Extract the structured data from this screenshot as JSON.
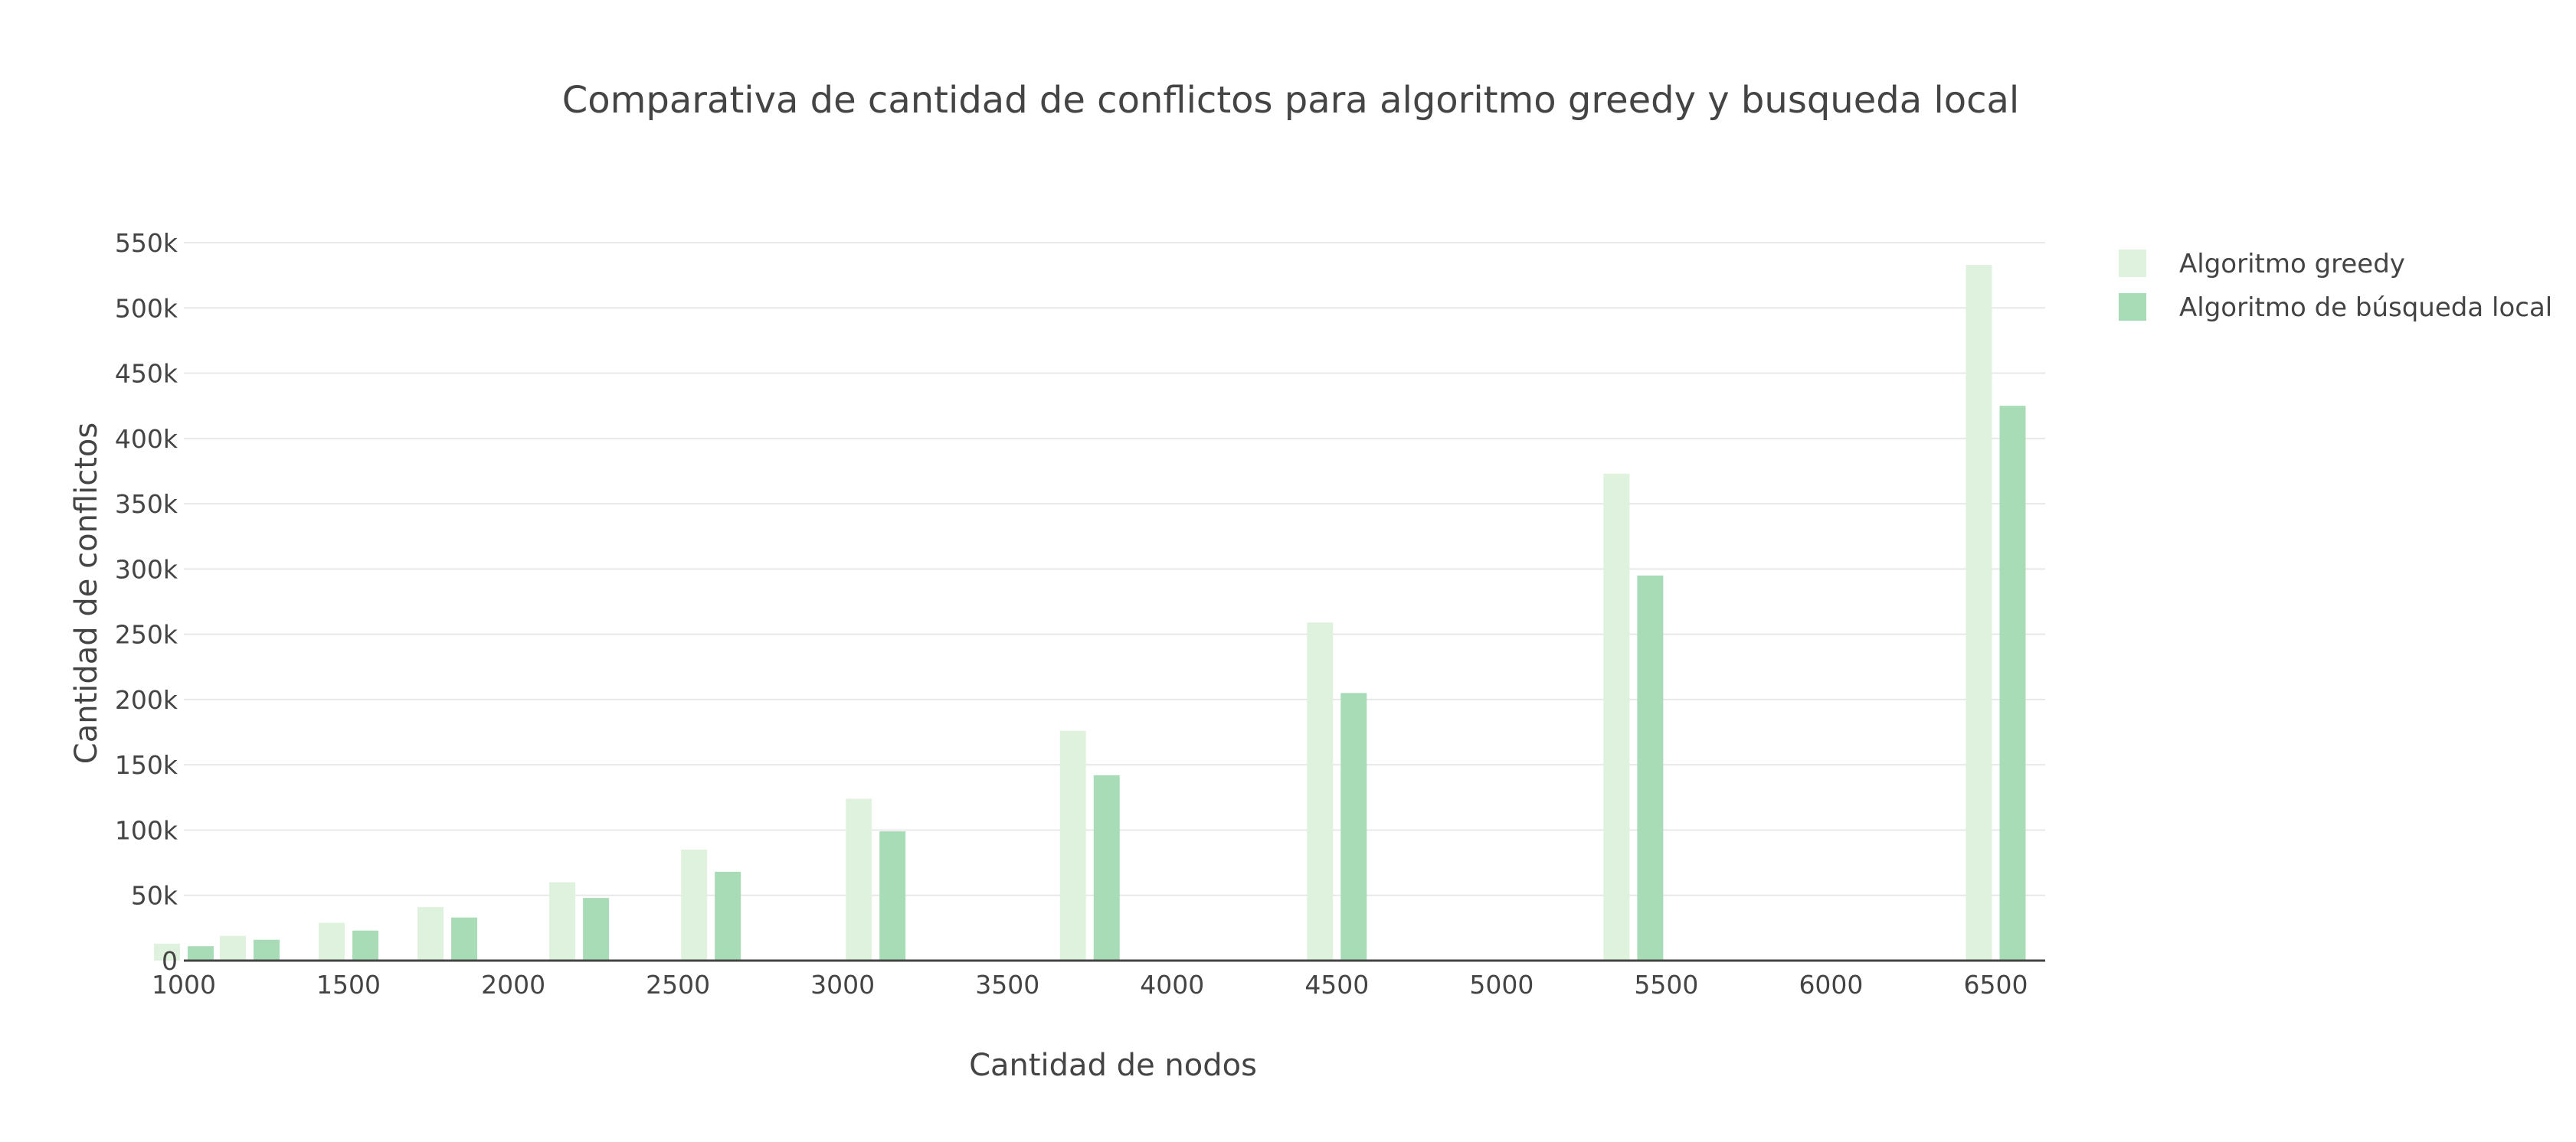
{
  "chart_data": {
    "type": "bar",
    "title": "Comparativa de cantidad de conflictos para algoritmo greedy y busqueda local",
    "xlabel": "Cantidad de nodos",
    "ylabel": "Cantidad de conflictos",
    "x": [
      1000,
      1200,
      1500,
      1800,
      2200,
      2600,
      3100,
      3750,
      4500,
      5400,
      6500
    ],
    "xlim": [
      1000,
      6650
    ],
    "ylim": [
      0,
      550000
    ],
    "x_tick_values": [
      1000,
      1500,
      2000,
      2500,
      3000,
      3500,
      4000,
      4500,
      5000,
      5500,
      6000,
      6500
    ],
    "x_tick_labels": [
      "1000",
      "1500",
      "2000",
      "2500",
      "3000",
      "3500",
      "4000",
      "4500",
      "5000",
      "5500",
      "6000",
      "6500"
    ],
    "y_tick_values": [
      0,
      50000,
      100000,
      150000,
      200000,
      250000,
      300000,
      350000,
      400000,
      450000,
      500000,
      550000
    ],
    "y_tick_labels": [
      "0",
      "50k",
      "100k",
      "150k",
      "200k",
      "250k",
      "300k",
      "350k",
      "400k",
      "450k",
      "500k",
      "550k"
    ],
    "grid": true,
    "legend_position": "top-right",
    "series": [
      {
        "name": "Algoritmo greedy",
        "color": "#dff2dd",
        "values": [
          13000,
          19000,
          29000,
          41000,
          60000,
          85000,
          124000,
          176000,
          259000,
          373000,
          533000
        ]
      },
      {
        "name": "Algoritmo de búsqueda local",
        "color": "#a8dcb6",
        "values": [
          11000,
          16000,
          23000,
          33000,
          48000,
          68000,
          99000,
          142000,
          205000,
          295000,
          425000
        ]
      }
    ]
  }
}
